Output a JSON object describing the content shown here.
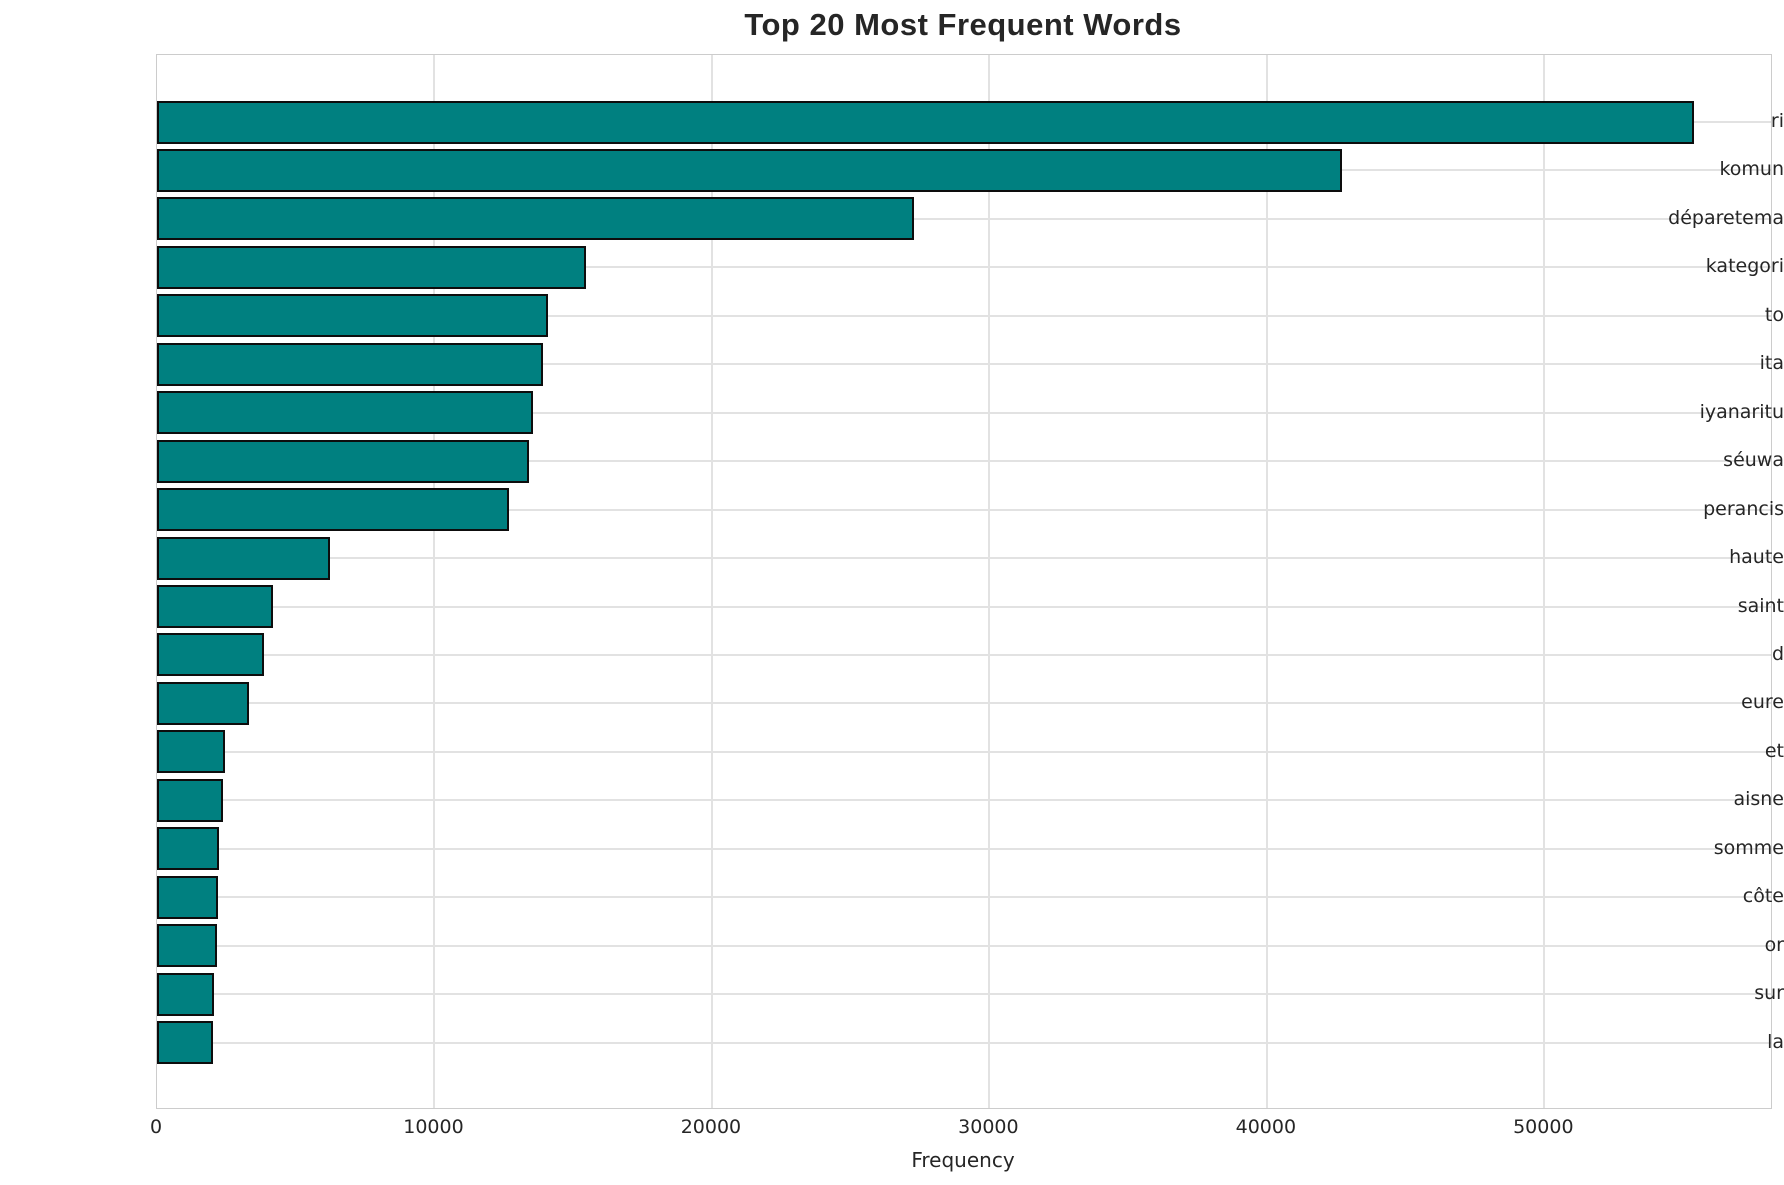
{
  "colors": {
    "bar_fill": "#008080",
    "bar_edge": "#0d0d0d",
    "grid": "#e2e2e2",
    "spine": "#cccccc",
    "text": "#262626",
    "background": "#ffffff"
  },
  "chart_data": {
    "type": "bar",
    "orientation": "horizontal",
    "title": "Top 20 Most Frequent Words",
    "xlabel": "Frequency",
    "ylabel": "",
    "categories": [
      "ri",
      "komun",
      "déparetema",
      "kategori",
      "to",
      "ita",
      "iyanaritu",
      "séuwa",
      "perancis",
      "haute",
      "saint",
      "d",
      "eure",
      "et",
      "aisne",
      "somme",
      "côte",
      "or",
      "sur",
      "la"
    ],
    "values": [
      55400,
      42700,
      27300,
      15460,
      14090,
      13910,
      13550,
      13400,
      12690,
      6230,
      4180,
      3860,
      3320,
      2450,
      2380,
      2230,
      2190,
      2150,
      2060,
      2010
    ],
    "xlim": [
      0,
      58170
    ],
    "xticks": [
      0,
      10000,
      20000,
      30000,
      40000,
      50000
    ],
    "xtick_labels": [
      "0",
      "10000",
      "20000",
      "30000",
      "40000",
      "50000"
    ],
    "grid": true,
    "legend": false,
    "bar_height_frac": 0.8
  }
}
